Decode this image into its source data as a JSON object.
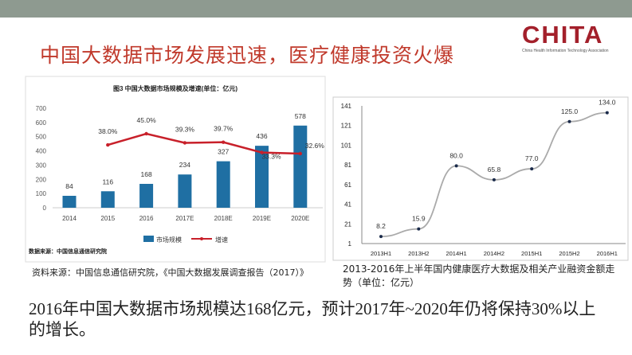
{
  "slide": {
    "title": "中国大数据市场发展迅速，医疗健康投资火爆",
    "logo": {
      "text": "CHITA",
      "subtitle": "China Health Information Technology Association"
    },
    "left_caption": "资料来源：中国信息通信研究院，《中国大数据发展调查报告（2017）》",
    "right_caption": "2013-2016年上半年国内健康医疗大数据及相关产业融资金额走势（单位：亿元）",
    "body": "2016年中国大数据市场规模达168亿元，预计2017年~2020年仍将保持30%以上的增长。",
    "colors": {
      "topbar": "#8e9a90",
      "title": "#c0392b",
      "bar": "#1f6fa3",
      "growth_line": "#c8202a",
      "logo": "#a3202b"
    }
  },
  "chart_data": [
    {
      "type": "bar",
      "title": "图3 中国大数据市场规模及增速(单位：亿元)",
      "categories": [
        "2014",
        "2015",
        "2016",
        "2017E",
        "2018E",
        "2019E",
        "2020E"
      ],
      "ylim": [
        0,
        700
      ],
      "yticks": [
        "0",
        "100",
        "200",
        "300",
        "400",
        "500",
        "600",
        "700"
      ],
      "legend_position": "bottom",
      "source": "数据来源：中国信息通信研究院",
      "series": [
        {
          "name": "市场规模",
          "type": "bar",
          "values": [
            84,
            116,
            168,
            234,
            327,
            436,
            578
          ],
          "labels": [
            "84",
            "116",
            "168",
            "234",
            "327",
            "436",
            "578"
          ]
        },
        {
          "name": "增速",
          "type": "line",
          "values": [
            null,
            38.0,
            45.0,
            39.3,
            39.7,
            33.3,
            32.6
          ],
          "labels": [
            "",
            "38.0%",
            "45.0%",
            "39.3%",
            "39.7%",
            "33.3%",
            "32.6%"
          ]
        }
      ]
    },
    {
      "type": "line",
      "categories": [
        "2013H1",
        "2013H2",
        "2014H1",
        "2014H2",
        "2015H1",
        "2015H2",
        "2016H1"
      ],
      "ylim": [
        1,
        141
      ],
      "yticks": [
        "1",
        "21",
        "41",
        "61",
        "81",
        "101",
        "121",
        "141"
      ],
      "grid": false,
      "series": [
        {
          "values": [
            8.2,
            15.9,
            80.0,
            65.8,
            77.0,
            125.0,
            134.0
          ],
          "labels": [
            "8.2",
            "15.9",
            "80.0",
            "65.8",
            "77.0",
            "125.0",
            "134.0"
          ]
        }
      ]
    }
  ]
}
